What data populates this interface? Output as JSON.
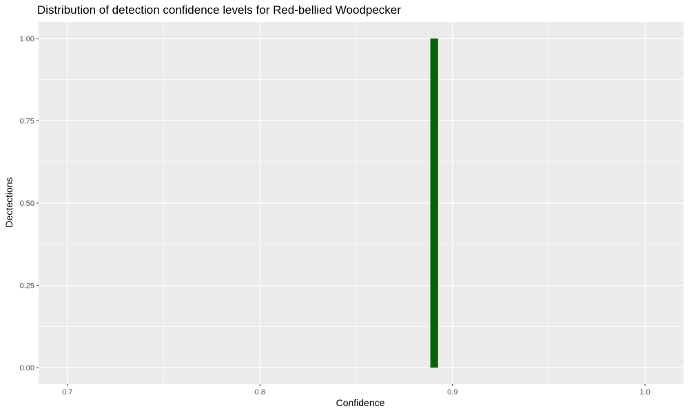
{
  "chart_data": {
    "type": "bar",
    "title": "Distribution of detection confidence levels for Red-bellied Woodpecker",
    "xlabel": "Confidence",
    "ylabel": "Dectections",
    "xlim": [
      0.685,
      1.02
    ],
    "ylim": [
      -0.05,
      1.05
    ],
    "x_ticks": [
      0.7,
      0.8,
      0.9,
      1.0
    ],
    "x_tick_labels": [
      "0.7",
      "0.8",
      "0.9",
      "1.0"
    ],
    "y_ticks": [
      0,
      0.25,
      0.5,
      0.75,
      1.0
    ],
    "y_tick_labels": [
      "0.00",
      "0.25",
      "0.50",
      "0.75",
      "1.00"
    ],
    "bins": [
      {
        "x_start": 0.8885,
        "x_end": 0.8925,
        "count": 1
      }
    ],
    "bar_color": "#006400",
    "panel_background": "#EBEBEB",
    "grid": true,
    "legend": "none"
  }
}
